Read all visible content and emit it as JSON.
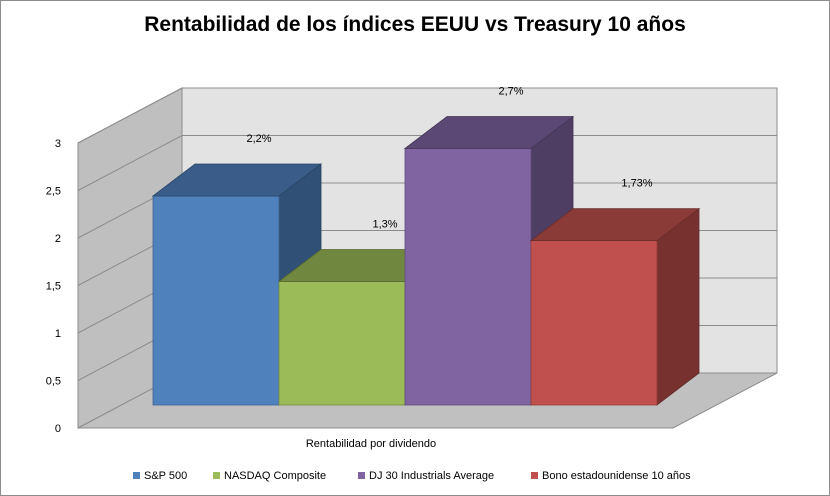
{
  "chart_data": {
    "type": "bar",
    "title": "Rentabilidad de los índices EEUU vs Treasury 10 años",
    "xlabel": "Rentabilidad por dividendo",
    "ylabel": "",
    "categories": [
      "Rentabilidad por dividendo"
    ],
    "ylim": [
      0,
      3
    ],
    "yticks": [
      "0",
      "0,5",
      "1",
      "1,5",
      "2",
      "2,5",
      "3"
    ],
    "grid": true,
    "legend_position": "bottom",
    "series": [
      {
        "name": "S&P 500",
        "values": [
          2.2
        ],
        "label": "2,2%",
        "color": "#4F81BD"
      },
      {
        "name": "NASDAQ Composite",
        "values": [
          1.3
        ],
        "label": "1,3%",
        "color": "#9BBB59"
      },
      {
        "name": "DJ 30 Industrials Average",
        "values": [
          2.7
        ],
        "label": "2,7%",
        "color": "#8064A2"
      },
      {
        "name": "Bono estadounidense 10 años",
        "values": [
          1.73
        ],
        "label": "1,73%",
        "color": "#C0504D"
      }
    ]
  }
}
